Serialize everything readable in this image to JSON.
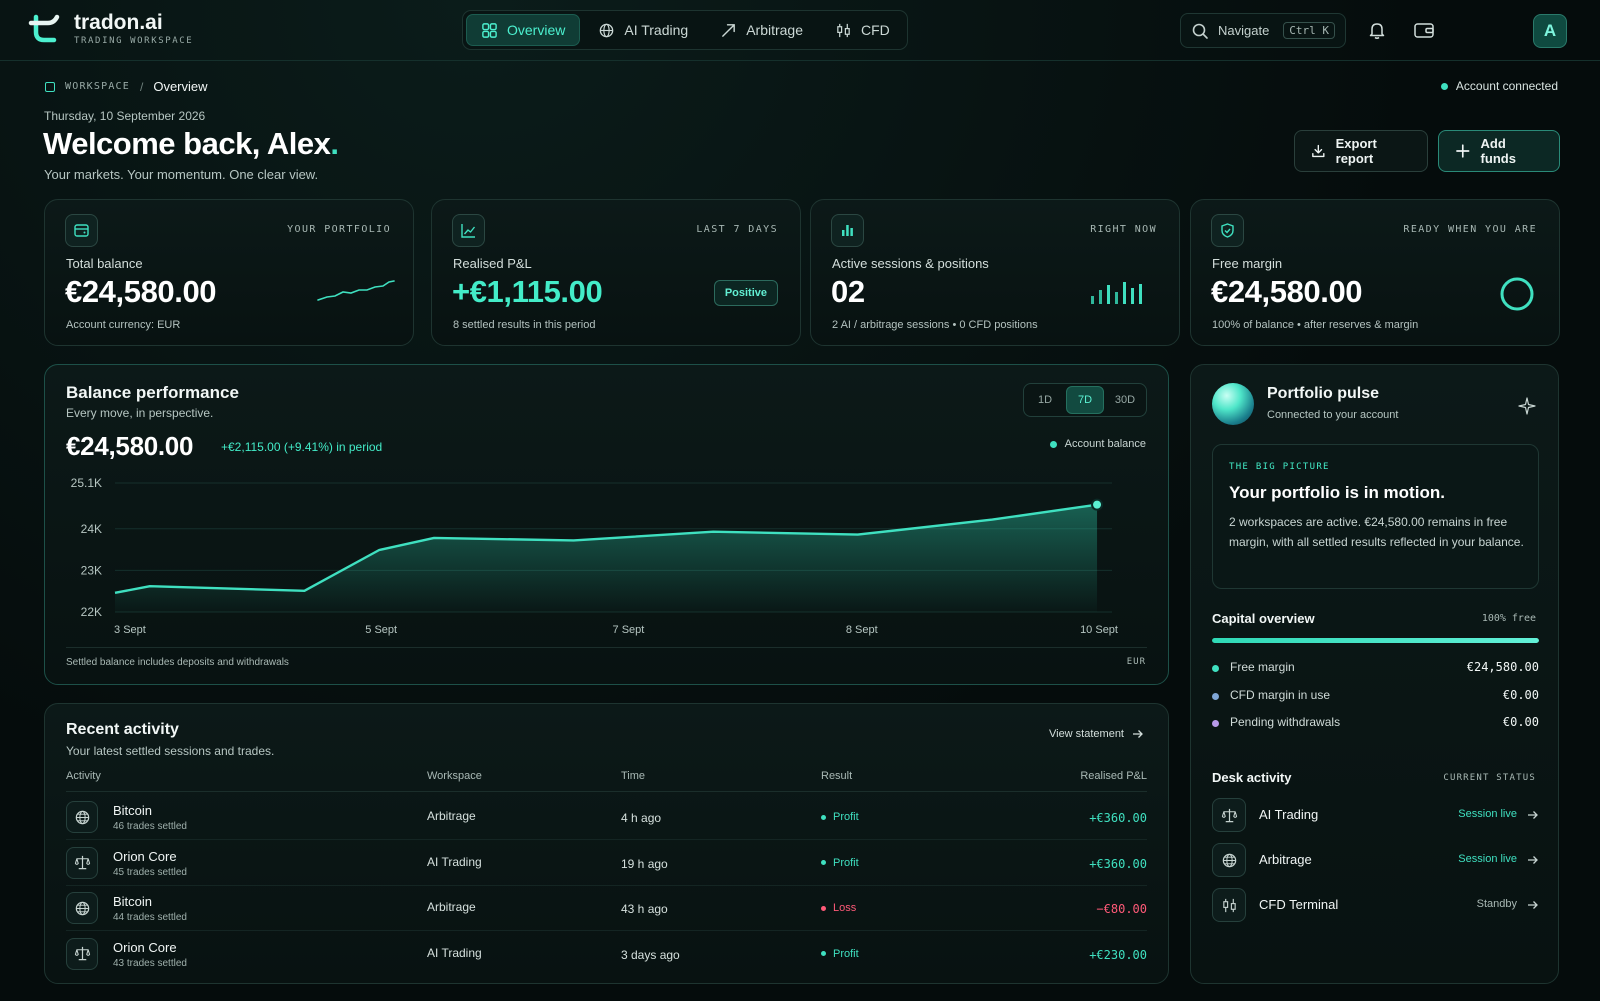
{
  "brand": {
    "name": "tradon.ai",
    "subtitle": "TRADING WORKSPACE"
  },
  "nav": {
    "tabs": [
      {
        "label": "Overview",
        "icon": "grid-icon",
        "active": true
      },
      {
        "label": "AI Trading",
        "icon": "globe-icon",
        "active": false
      },
      {
        "label": "Arbitrage",
        "icon": "arrow-up-right-icon",
        "active": false
      },
      {
        "label": "CFD",
        "icon": "candles-icon",
        "active": false
      }
    ],
    "search_label": "Navigate",
    "search_shortcut": "Ctrl K",
    "avatar_initial": "A"
  },
  "header": {
    "breadcrumb_root": "WORKSPACE",
    "breadcrumb_sep": "/",
    "breadcrumb_current": "Overview",
    "connection_status": "Account connected",
    "date": "Thursday, 10 September 2026",
    "welcome_prefix": "Welcome back, Alex",
    "welcome_dot": ".",
    "tagline": "Your markets. Your momentum. One clear view.",
    "export_label": "Export report",
    "add_funds_label": "Add funds"
  },
  "stats": {
    "balance": {
      "tag": "YOUR PORTFOLIO",
      "label": "Total balance",
      "value": "€24,580.00",
      "sub": "Account currency: EUR"
    },
    "pnl": {
      "tag": "LAST 7 DAYS",
      "label": "Realised P&L",
      "value": "+€1,115.00",
      "sub": "8 settled results in this period",
      "badge": "Positive"
    },
    "sessions": {
      "tag": "RIGHT NOW",
      "label": "Active sessions & positions",
      "value": "02",
      "sub": "2 AI / arbitrage sessions • 0 CFD positions"
    },
    "margin": {
      "tag": "READY WHEN YOU ARE",
      "label": "Free margin",
      "value": "€24,580.00",
      "sub": "100% of balance • after reserves & margin"
    }
  },
  "performance": {
    "title": "Balance performance",
    "subtitle": "Every move, in perspective.",
    "value": "€24,580.00",
    "delta": "+€2,115.00 (+9.41%) in period",
    "ranges": [
      "1D",
      "7D",
      "30D"
    ],
    "active_range": "7D",
    "legend": "Account balance",
    "footnote": "Settled balance includes deposits and withdrawals",
    "currency": "EUR"
  },
  "chart_data": {
    "type": "area",
    "title": "",
    "xlabel": "",
    "ylabel": "",
    "y_ticks": [
      "25.1K",
      "24K",
      "23K",
      "22K"
    ],
    "y_tick_values": [
      25100,
      24000,
      23000,
      22000
    ],
    "ylim": [
      22000,
      25100
    ],
    "x_ticks": [
      "3 Sept",
      "5 Sept",
      "7 Sept",
      "8 Sept",
      "10 Sept"
    ],
    "x_tick_positions": [
      0.015,
      0.267,
      0.515,
      0.749,
      0.987
    ],
    "series": [
      {
        "name": "Account balance",
        "x": [
          0.0,
          0.035,
          0.19,
          0.265,
          0.32,
          0.46,
          0.6,
          0.745,
          0.88,
          0.985
        ],
        "values": [
          22460,
          22620,
          22510,
          23490,
          23780,
          23720,
          23930,
          23860,
          24220,
          24580
        ]
      }
    ],
    "grid": true,
    "legend_position": "top-right"
  },
  "activity": {
    "title": "Recent activity",
    "subtitle": "Your latest settled sessions and trades.",
    "view_statement": "View statement",
    "columns": [
      "Activity",
      "Workspace",
      "Time",
      "Result",
      "Realised P&L"
    ],
    "rows": [
      {
        "name": "Bitcoin",
        "sub": "46 trades settled",
        "workspace": "Arbitrage",
        "time": "4 h ago",
        "result": "Profit",
        "pnl": "+€360.00",
        "icon": "globe-icon"
      },
      {
        "name": "Orion Core",
        "sub": "45 trades settled",
        "workspace": "AI Trading",
        "time": "19 h ago",
        "result": "Profit",
        "pnl": "+€360.00",
        "icon": "scales-icon"
      },
      {
        "name": "Bitcoin",
        "sub": "44 trades settled",
        "workspace": "Arbitrage",
        "time": "43 h ago",
        "result": "Loss",
        "pnl": "−€80.00",
        "icon": "globe-icon"
      },
      {
        "name": "Orion Core",
        "sub": "43 trades settled",
        "workspace": "AI Trading",
        "time": "3 days ago",
        "result": "Profit",
        "pnl": "+€230.00",
        "icon": "scales-icon"
      }
    ]
  },
  "pulse": {
    "title": "Portfolio pulse",
    "subtitle": "Connected to your account",
    "bigpic_tag": "THE BIG PICTURE",
    "bigpic_title": "Your portfolio is in motion.",
    "bigpic_text": "2 workspaces are active. €24,580.00 remains in free margin, with all settled results reflected in your balance.",
    "capital_title": "Capital overview",
    "capital_free": "100% free",
    "capital_free_fraction": 1.0,
    "capital_rows": [
      {
        "label": "Free margin",
        "value": "€24,580.00",
        "color": "#3fe0c0"
      },
      {
        "label": "CFD margin in use",
        "value": "€0.00",
        "color": "#7fa6d6"
      },
      {
        "label": "Pending withdrawals",
        "value": "€0.00",
        "color": "#b89ae8"
      }
    ],
    "desk_title": "Desk activity",
    "desk_status_label": "CURRENT STATUS",
    "desk_rows": [
      {
        "name": "AI Trading",
        "state": "Session live",
        "icon": "scales-icon",
        "live": true
      },
      {
        "name": "Arbitrage",
        "state": "Session live",
        "icon": "globe-icon",
        "live": true
      },
      {
        "name": "CFD Terminal",
        "state": "Standby",
        "icon": "candles-icon",
        "live": false
      }
    ]
  },
  "colors": {
    "accent": "#3fe0c0",
    "loss": "#ff5a78",
    "background": "#06100f"
  }
}
